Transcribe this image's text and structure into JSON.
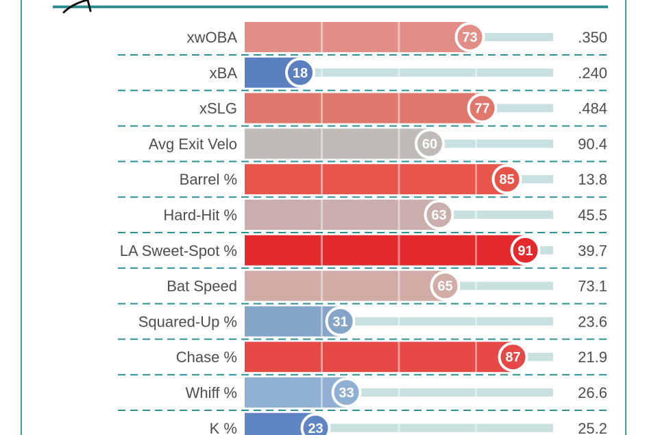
{
  "chart_data": {
    "type": "bar",
    "title": "",
    "xlabel": "",
    "ylabel": "",
    "xlim": [
      0,
      100
    ],
    "categories": [
      "xwOBA",
      "xBA",
      "xSLG",
      "Avg Exit Velo",
      "Barrel %",
      "Hard-Hit %",
      "LA Sweet-Spot %",
      "Bat Speed",
      "Squared-Up %",
      "Chase %",
      "Whiff %",
      "K %"
    ],
    "percentiles": [
      73,
      18,
      77,
      60,
      85,
      63,
      91,
      65,
      31,
      87,
      33,
      23
    ],
    "stat_values": [
      ".350",
      ".240",
      ".484",
      "90.4",
      "13.8",
      "45.5",
      "39.7",
      "73.1",
      "23.6",
      "21.9",
      "26.6",
      "25.2"
    ],
    "colors": [
      "#e08e86",
      "#5b80bf",
      "#e0776c",
      "#bfbcb7",
      "#e6544a",
      "#c9aeab",
      "#e52a2e",
      "#d2aca7",
      "#85a5c8",
      "#e54845",
      "#8fb0d2",
      "#5f86c3"
    ]
  }
}
